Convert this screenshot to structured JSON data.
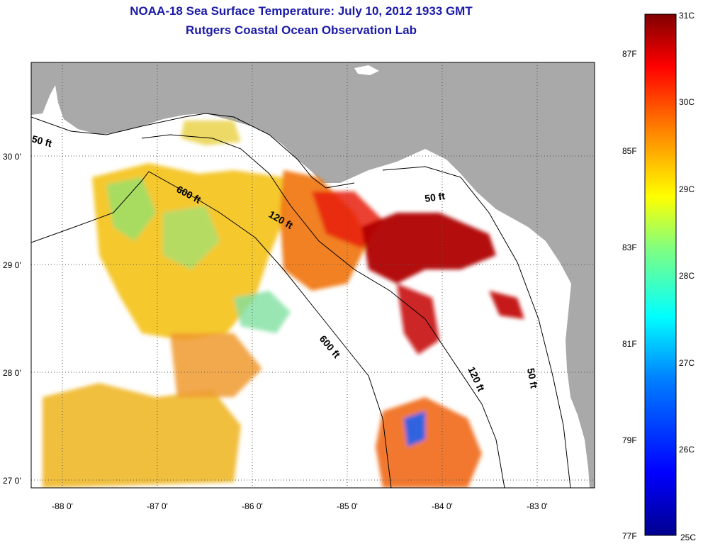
{
  "header": {
    "title_line1": "NOAA-18 Sea Surface Temperature:  July 10, 2012 1933 GMT",
    "title_line2": "Rutgers Coastal Ocean Observation Lab"
  },
  "map": {
    "lat_ticks": [
      "30 0'",
      "29 0'",
      "28 0'",
      "27 0'"
    ],
    "lon_ticks": [
      "-88 0'",
      "-87 0'",
      "-86 0'",
      "-85 0'",
      "-84 0'",
      "-83 0'"
    ],
    "contours": [
      {
        "label": "50 ft"
      },
      {
        "label": "600 ft"
      },
      {
        "label": "120 ft"
      },
      {
        "label": "50 ft"
      },
      {
        "label": "600 ft"
      },
      {
        "label": "120 ft"
      },
      {
        "label": "50 ft"
      }
    ],
    "land_color": "#a9a9a9"
  },
  "colorbar": {
    "celsius_labels": [
      "31C",
      "30C",
      "29C",
      "28C",
      "27C",
      "26C",
      "25C"
    ],
    "fahrenheit_labels": [
      "87F",
      "85F",
      "83F",
      "81F",
      "79F",
      "77F"
    ],
    "range_c": [
      25,
      31
    ],
    "colors": [
      "#00008f",
      "#0000ff",
      "#0080ff",
      "#00ffff",
      "#80ff80",
      "#ffff00",
      "#ff8000",
      "#ff0000",
      "#800000"
    ]
  }
}
